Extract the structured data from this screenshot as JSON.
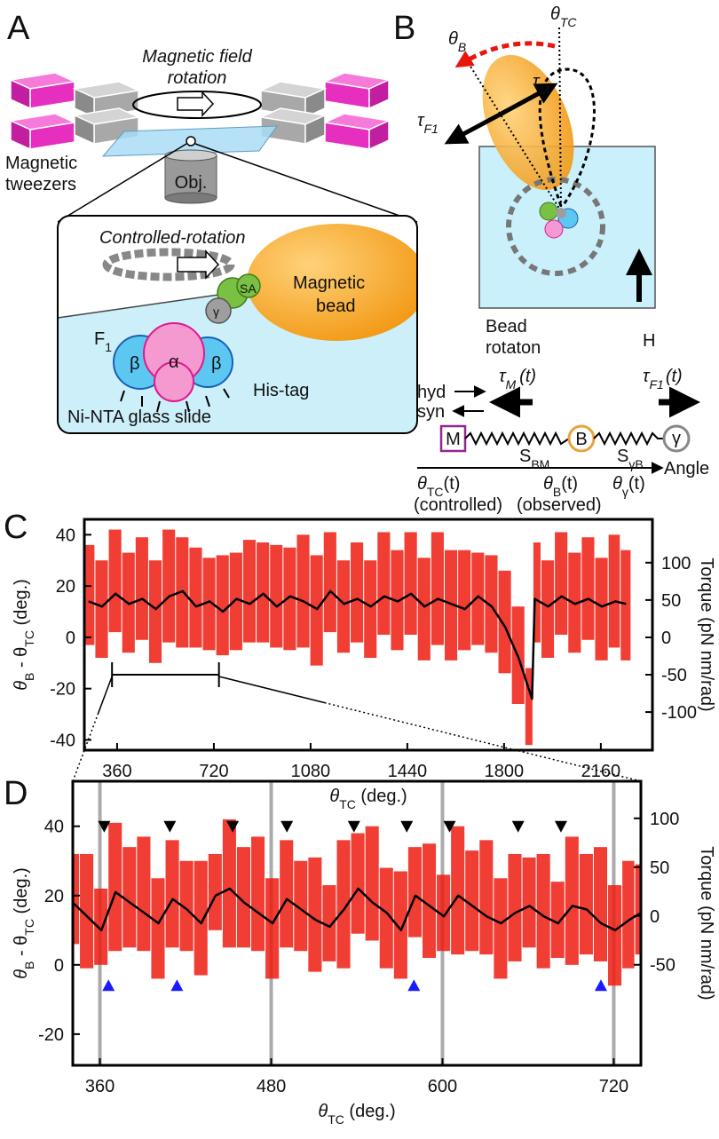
{
  "panels": [
    "A",
    "B",
    "C",
    "D"
  ],
  "panel_a": {
    "field_rotation": [
      "Magnetic field",
      "rotation"
    ],
    "tweezers": [
      "Magnetic",
      "tweezers"
    ],
    "objective": "Obj.",
    "controlled": "Controlled-rotation",
    "bead": [
      "Magnetic",
      "bead"
    ],
    "sa": "SA",
    "gamma": "γ",
    "f1": [
      "F",
      "1"
    ],
    "betas": [
      "β",
      "β"
    ],
    "alpha": "α",
    "his": "His-tag",
    "slide": "Ni-NTA glass slide"
  },
  "panel_b": {
    "theta_tc": [
      "θ",
      "TC"
    ],
    "theta_b": [
      "θ",
      "B"
    ],
    "tau_m": [
      "τ",
      "M"
    ],
    "tau_f1": [
      "τ",
      "F1"
    ],
    "bead_rotation": [
      "Bead",
      "rotaton"
    ],
    "h": "H",
    "hyd": "hyd",
    "syn": "syn",
    "tau_m_t": [
      "τ",
      "M",
      "(t)"
    ],
    "tau_f1_t": [
      "τ",
      "F1",
      "(t)"
    ],
    "m": "M",
    "b": "B",
    "gamma": "γ",
    "s_bm": [
      "S",
      "BM"
    ],
    "s_gb": [
      "S",
      "γB"
    ],
    "angle": "Angle",
    "theta_tc_t": [
      "θ",
      "TC",
      "(t)"
    ],
    "theta_b_t": [
      "θ",
      "B",
      "(t)"
    ],
    "theta_g_t": [
      "θ",
      "γ",
      "(t)"
    ],
    "controlled": "(controlled)",
    "observed": "(observed)"
  },
  "chart_data": [
    {
      "type": "line",
      "x": [
        254,
        304,
        354,
        404,
        454,
        504,
        554,
        604,
        654,
        704,
        754,
        804,
        854,
        904,
        954,
        1004,
        1054,
        1104,
        1154,
        1204,
        1254,
        1304,
        1354,
        1404,
        1454,
        1504,
        1554,
        1604,
        1654,
        1704,
        1754,
        1804,
        1854,
        1904,
        1914,
        1964,
        2014,
        2064,
        2114,
        2164,
        2214,
        2254
      ],
      "series": [
        {
          "type": "band",
          "color": "#ee1c10",
          "upper": [
            36,
            30,
            42,
            33,
            39,
            30,
            42,
            39,
            35,
            31,
            32,
            33,
            38,
            37,
            36,
            35,
            40,
            32,
            41,
            30,
            37,
            30,
            41,
            34,
            41,
            31,
            41,
            34,
            34,
            33,
            32,
            26,
            12,
            -12,
            37,
            30,
            41,
            33,
            39,
            31,
            40,
            34
          ],
          "lower": [
            -3,
            -8,
            2,
            -6,
            -1,
            -10,
            -2,
            -4,
            -4,
            -5,
            -7,
            -5,
            -2,
            -2,
            -4,
            -5,
            -4,
            -11,
            2,
            -6,
            -2,
            -8,
            1,
            -5,
            1,
            -9,
            -3,
            -9,
            -5,
            -3,
            -6,
            -14,
            -26,
            -42,
            -2,
            -8,
            1,
            -6,
            -1,
            -9,
            -4,
            -9
          ]
        },
        {
          "type": "line",
          "color": "#000000",
          "values": [
            14,
            12,
            17,
            13,
            15,
            11,
            16,
            18,
            12,
            14,
            10,
            15,
            13,
            17,
            12,
            16,
            14,
            11,
            18,
            13,
            15,
            12,
            16,
            14,
            17,
            12,
            15,
            13,
            11,
            16,
            12,
            4,
            -8,
            -24,
            15,
            12,
            16,
            13,
            15,
            12,
            14,
            13
          ]
        }
      ],
      "xlim": [
        238,
        2352
      ],
      "xticks": [
        360,
        720,
        1080,
        1440,
        1800,
        2160
      ],
      "ylim": [
        -44,
        46
      ],
      "yticks": [
        40,
        20,
        0,
        -20,
        -40
      ],
      "y2lim": [
        -151,
        158
      ],
      "y2ticks": [
        100,
        50,
        0,
        -50,
        -100
      ],
      "xlabel": [
        "θ",
        "TC",
        " (deg.)"
      ],
      "ylabel": [
        "θ",
        "B",
        " - θ",
        "TC",
        " (deg.)"
      ],
      "y2label": [
        "Torque (pN nm/rad)"
      ],
      "xgrid": false
    },
    {
      "type": "line",
      "x": [
        341,
        351,
        361,
        371,
        381,
        391,
        401,
        411,
        421,
        431,
        441,
        451,
        461,
        471,
        481,
        491,
        501,
        511,
        521,
        531,
        541,
        551,
        561,
        571,
        581,
        591,
        601,
        611,
        621,
        631,
        641,
        651,
        661,
        671,
        681,
        691,
        701,
        711,
        721,
        731,
        739
      ],
      "series": [
        {
          "type": "band",
          "color": "#ee1c10",
          "upper": [
            32,
            32,
            22,
            41,
            34,
            37,
            25,
            36,
            30,
            30,
            32,
            42,
            34,
            37,
            25,
            36,
            30,
            31,
            23,
            36,
            38,
            40,
            28,
            27,
            34,
            35,
            26,
            40,
            33,
            36,
            25,
            32,
            31,
            32,
            24,
            37,
            32,
            34,
            23,
            30,
            29
          ],
          "lower": [
            6,
            -1,
            0,
            4,
            5,
            4,
            -4,
            5,
            4,
            -3,
            10,
            5,
            5,
            4,
            -4,
            5,
            4,
            -2,
            1,
            -1,
            9,
            7,
            -1,
            -4,
            8,
            2,
            4,
            3,
            4,
            3,
            -4,
            1,
            5,
            -1,
            2,
            0,
            3,
            1,
            -6,
            -1,
            3
          ]
        },
        {
          "type": "line",
          "color": "#000000",
          "values": [
            18,
            14,
            10,
            21,
            18,
            15,
            12,
            19,
            16,
            12,
            20,
            22,
            18,
            15,
            12,
            19,
            16,
            13,
            11,
            16,
            22,
            18,
            15,
            10,
            20,
            17,
            14,
            20,
            17,
            14,
            12,
            15,
            17,
            14,
            12,
            17,
            16,
            12,
            10,
            13,
            15
          ]
        }
      ],
      "markers": [
        {
          "shape": "down",
          "color": "#000000",
          "x": [
            363,
            409,
            453,
            491,
            538,
            575,
            605,
            653,
            683
          ],
          "y": 40
        },
        {
          "shape": "up",
          "color": "#1a1aff",
          "x": [
            366,
            414,
            580,
            711
          ],
          "y": -6
        }
      ],
      "xlim": [
        341,
        739
      ],
      "xticks": [
        360,
        480,
        600,
        720
      ],
      "ylim": [
        -29,
        53
      ],
      "yticks": [
        40,
        20,
        0,
        -20
      ],
      "y2lim": [
        -153,
        138
      ],
      "y2ticks": [
        100,
        50,
        0,
        -50
      ],
      "xlabel": [
        "θ",
        "TC",
        " (deg.)"
      ],
      "ylabel": [
        "θ",
        "B",
        " - θ",
        "TC",
        " (deg.)"
      ],
      "y2label": [
        "Torque (pN nm/rad)"
      ],
      "xgrid": true
    }
  ]
}
